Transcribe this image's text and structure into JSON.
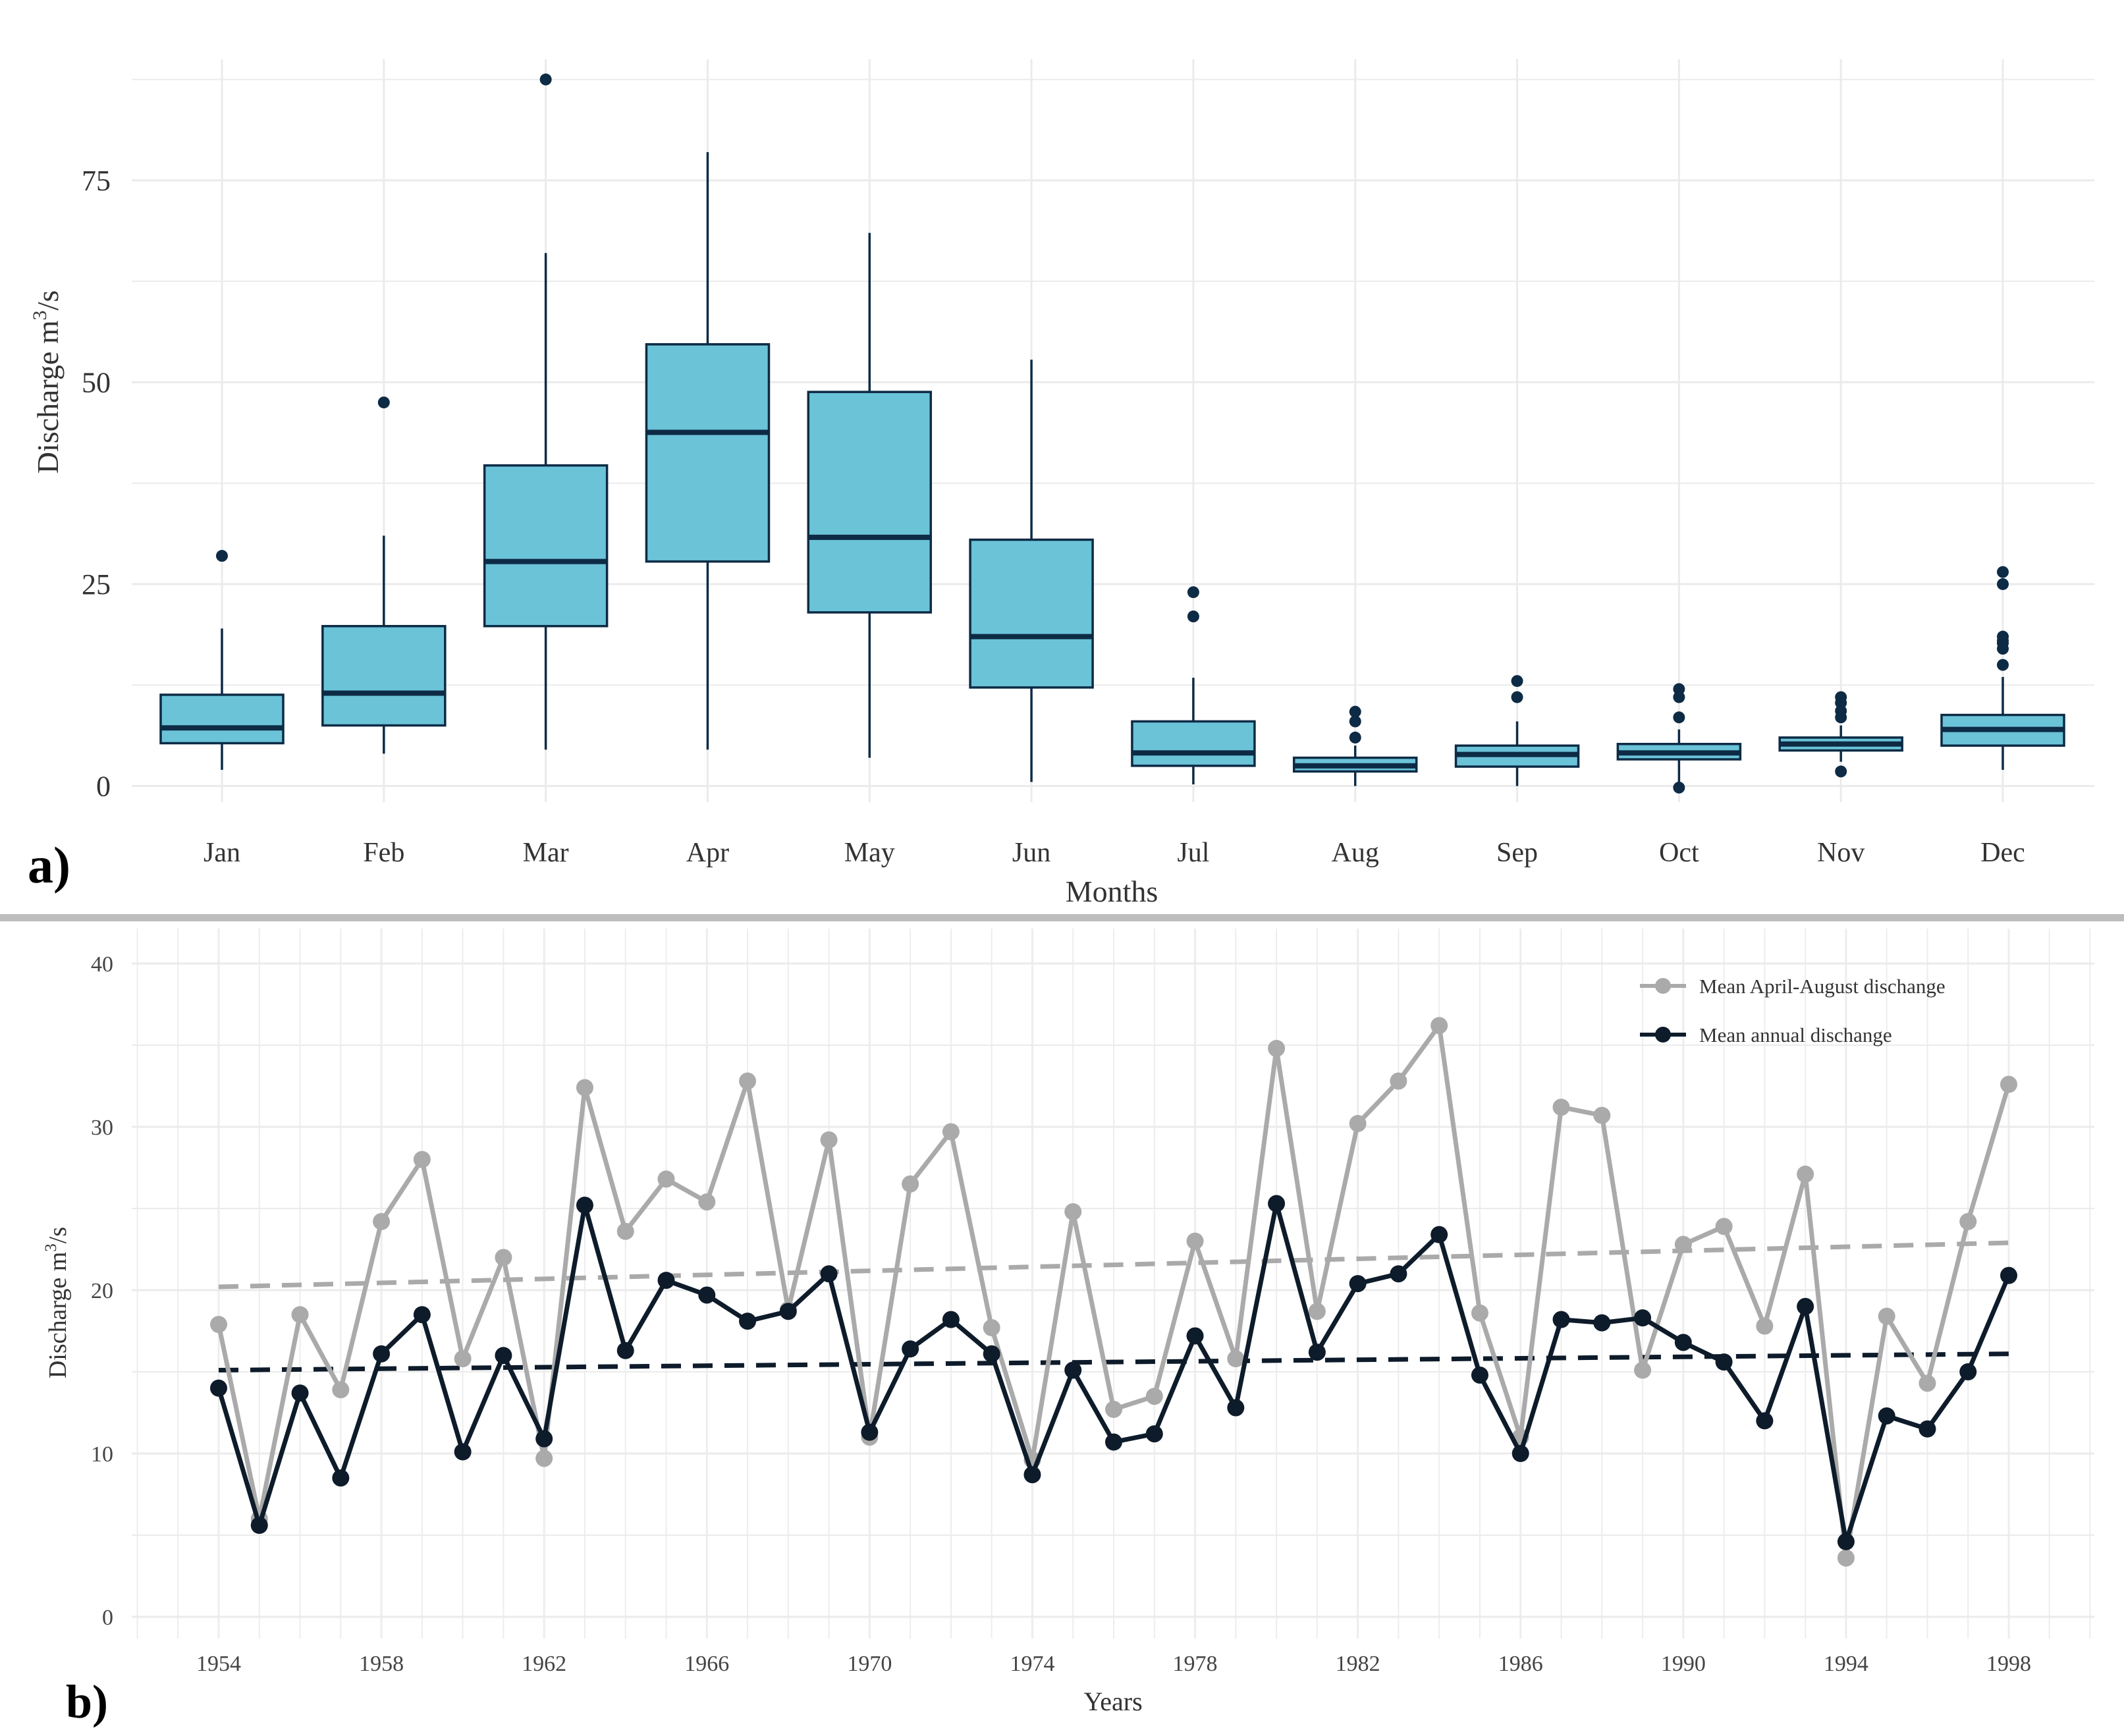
{
  "chart_data": [
    {
      "type": "box",
      "panel_label": "a)",
      "xlabel": "Months",
      "ylabel_prefix": "Discharge m",
      "ylabel_sup": "3",
      "ylabel_suffix": "/s",
      "ylim": [
        -2,
        90
      ],
      "y_ticks": [
        0,
        25,
        50,
        75
      ],
      "grid": true,
      "colors": {
        "box_fill": "#6BC3D8",
        "box_line": "#0D2B45",
        "outlier": "#0D2B45",
        "grid": "#EBEBEB"
      },
      "boxes": [
        {
          "label": "Jan",
          "lower_whisker": 2,
          "q1": 5.3,
          "median": 7.2,
          "q3": 11.3,
          "upper_whisker": 19.5,
          "outliers": [
            28.5
          ]
        },
        {
          "label": "Feb",
          "lower_whisker": 4,
          "q1": 7.5,
          "median": 11.5,
          "q3": 19.8,
          "upper_whisker": 31,
          "outliers": [
            47.5
          ]
        },
        {
          "label": "Mar",
          "lower_whisker": 4.5,
          "q1": 19.8,
          "median": 27.8,
          "q3": 39.7,
          "upper_whisker": 66,
          "outliers": [
            87.5
          ]
        },
        {
          "label": "Apr",
          "lower_whisker": 4.5,
          "q1": 27.8,
          "median": 43.8,
          "q3": 54.7,
          "upper_whisker": 78.5,
          "outliers": []
        },
        {
          "label": "May",
          "lower_whisker": 3.5,
          "q1": 21.5,
          "median": 30.8,
          "q3": 48.8,
          "upper_whisker": 68.5,
          "outliers": []
        },
        {
          "label": "Jun",
          "lower_whisker": 0.5,
          "q1": 12.2,
          "median": 18.5,
          "q3": 30.5,
          "upper_whisker": 52.8,
          "outliers": []
        },
        {
          "label": "Jul",
          "lower_whisker": 0.2,
          "q1": 2.5,
          "median": 4.1,
          "q3": 8,
          "upper_whisker": 13.4,
          "outliers": [
            21,
            24
          ]
        },
        {
          "label": "Aug",
          "lower_whisker": 0,
          "q1": 1.8,
          "median": 2.5,
          "q3": 3.5,
          "upper_whisker": 5,
          "outliers": [
            6,
            8,
            9.2
          ]
        },
        {
          "label": "Sep",
          "lower_whisker": 0,
          "q1": 2.4,
          "median": 3.9,
          "q3": 5,
          "upper_whisker": 8,
          "outliers": [
            11,
            13
          ]
        },
        {
          "label": "Oct",
          "lower_whisker": 0.5,
          "q1": 3.3,
          "median": 4.1,
          "q3": 5.2,
          "upper_whisker": 7,
          "outliers": [
            8.5,
            11,
            12,
            -0.2
          ]
        },
        {
          "label": "Nov",
          "lower_whisker": 3,
          "q1": 4.4,
          "median": 5.2,
          "q3": 6,
          "upper_whisker": 7.5,
          "outliers": [
            8.5,
            9.3,
            10.3,
            11,
            1.8
          ]
        },
        {
          "label": "Dec",
          "lower_whisker": 2,
          "q1": 5,
          "median": 7,
          "q3": 8.8,
          "upper_whisker": 13.5,
          "outliers": [
            15,
            17,
            17.7,
            18,
            18.5,
            25,
            26.5
          ]
        }
      ]
    },
    {
      "type": "line",
      "panel_label": "b)",
      "xlabel": "Years",
      "ylabel_prefix": "Discharge  m",
      "ylabel_sup": "3",
      "ylabel_suffix": "/s",
      "xlim": [
        1952,
        2000.2
      ],
      "ylim": [
        -2,
        42
      ],
      "x_ticks": [
        1954,
        1958,
        1962,
        1966,
        1970,
        1974,
        1978,
        1982,
        1986,
        1990,
        1994,
        1998
      ],
      "y_ticks": [
        0,
        10,
        20,
        30,
        40
      ],
      "grid": true,
      "legend_position": "top-right",
      "x": [
        1954,
        1955,
        1956,
        1957,
        1958,
        1959,
        1960,
        1961,
        1962,
        1963,
        1964,
        1965,
        1966,
        1967,
        1968,
        1969,
        1970,
        1971,
        1972,
        1973,
        1974,
        1975,
        1976,
        1977,
        1978,
        1979,
        1980,
        1981,
        1982,
        1983,
        1984,
        1985,
        1986,
        1987,
        1988,
        1989,
        1990,
        1991,
        1992,
        1993,
        1994,
        1995,
        1996,
        1997,
        1998
      ],
      "series": [
        {
          "name": "Mean April-August dischange",
          "color": "#AAAAAA",
          "values": [
            17.9,
            6,
            18.5,
            13.9,
            24.2,
            28,
            15.8,
            22,
            9.7,
            32.4,
            23.6,
            26.8,
            25.4,
            32.8,
            18.8,
            29.2,
            11,
            26.5,
            29.7,
            17.7,
            9.6,
            24.8,
            12.7,
            13.5,
            23,
            15.8,
            34.8,
            18.7,
            30.2,
            32.8,
            36.2,
            18.6,
            11,
            31.2,
            30.7,
            15.1,
            22.8,
            23.9,
            17.8,
            27.1,
            3.6,
            18.4,
            14.3,
            24.2,
            32.6
          ],
          "trend": [
            20.2,
            22.9
          ]
        },
        {
          "name": "Mean annual dischange",
          "color": "#0D1B2A",
          "values": [
            14,
            5.6,
            13.7,
            8.5,
            16.1,
            18.5,
            10.1,
            16,
            10.9,
            25.2,
            16.3,
            20.6,
            19.7,
            18.1,
            18.7,
            21,
            11.3,
            16.4,
            18.2,
            16.1,
            8.7,
            15.1,
            10.7,
            11.2,
            17.2,
            12.8,
            25.3,
            16.2,
            20.4,
            21,
            23.4,
            14.8,
            10,
            18.2,
            18,
            18.3,
            16.8,
            15.6,
            12,
            19,
            4.6,
            12.3,
            11.5,
            15,
            20.9
          ],
          "trend": [
            15.1,
            16.1
          ]
        }
      ]
    }
  ]
}
